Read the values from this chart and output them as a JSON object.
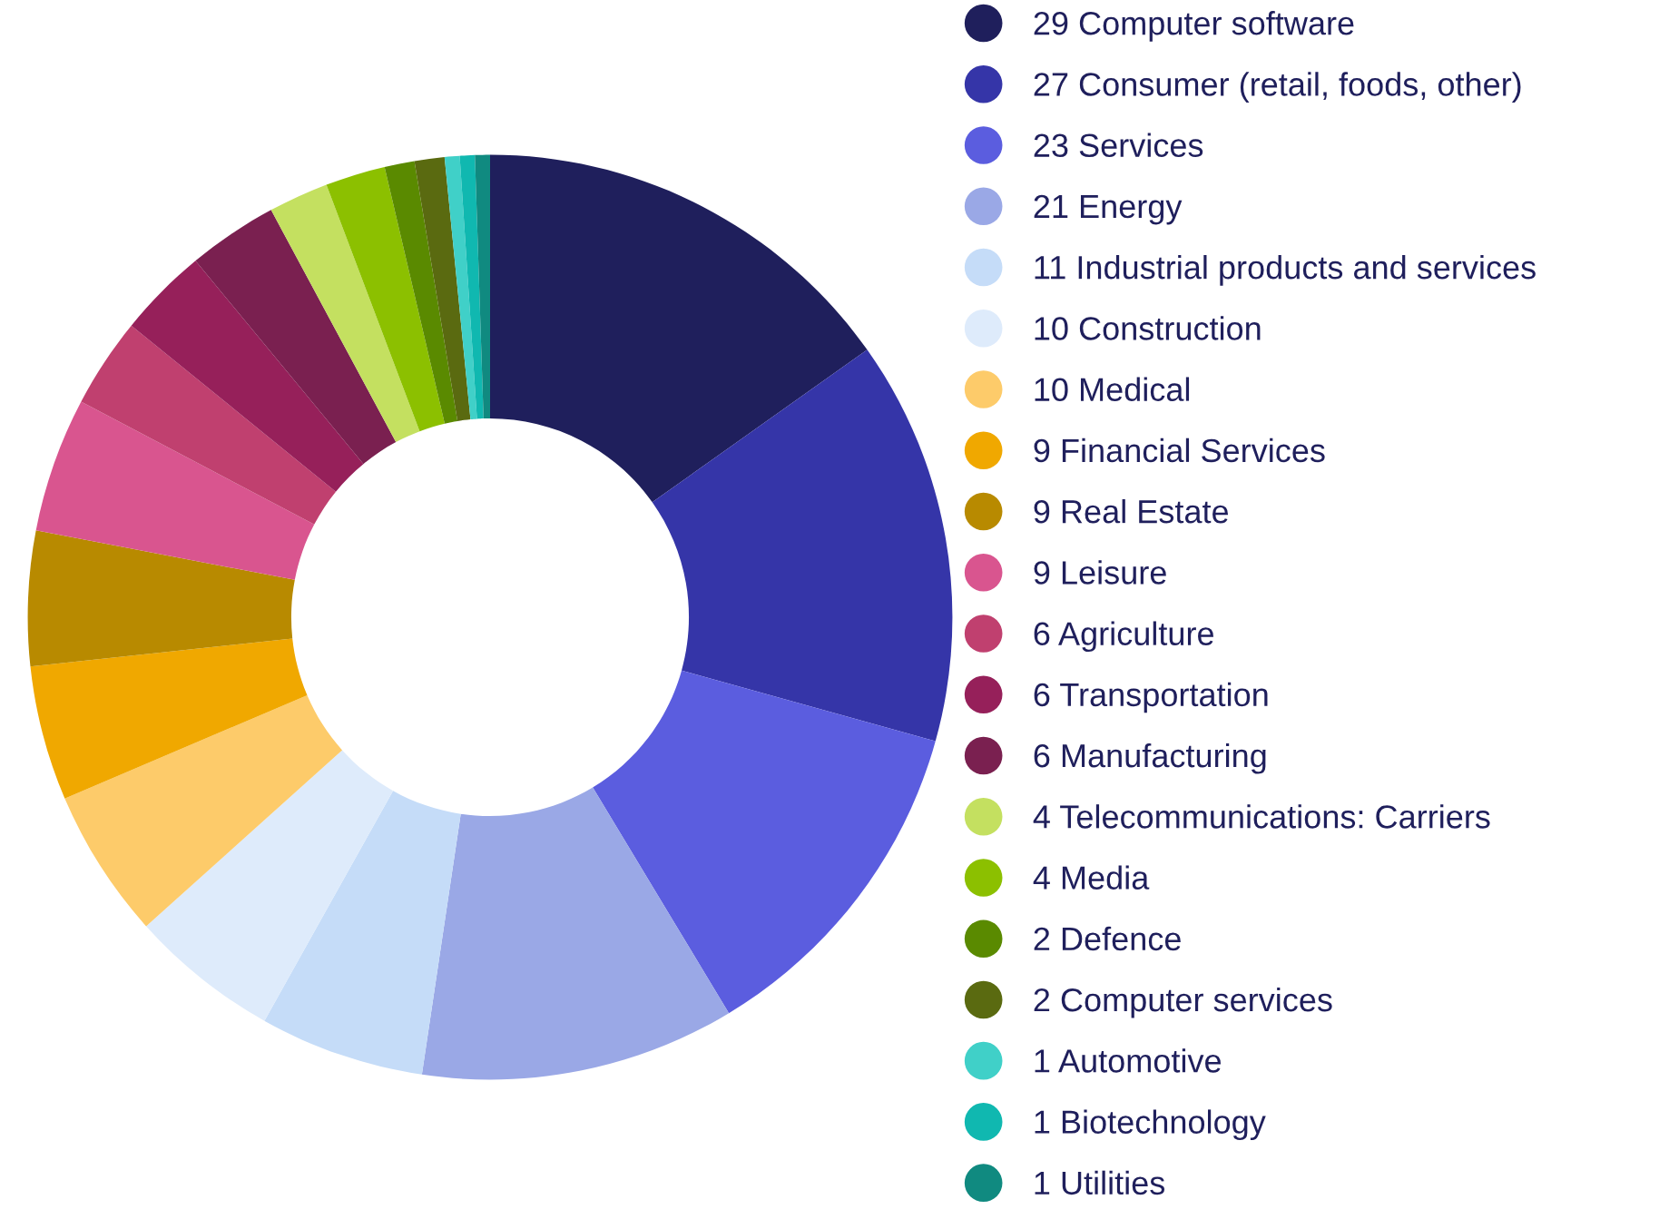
{
  "chart_data": {
    "type": "donut",
    "legend": "right",
    "categories": [
      "29 Computer software",
      "27 Consumer (retail, foods, other)",
      "23 Services",
      "21 Energy",
      "11 Industrial products and services",
      "10 Construction",
      "10 Medical",
      "9 Financial Services",
      "9 Real Estate",
      "9 Leisure",
      "6 Agriculture",
      "6 Transportation",
      "6 Manufacturing",
      "4 Telecommunications: Carriers",
      "4 Media",
      "2 Defence",
      "2 Computer services",
      "1 Automotive",
      "1 Biotechnology",
      "1 Utilities"
    ],
    "values": [
      29,
      27,
      23,
      21,
      11,
      10,
      10,
      9,
      9,
      9,
      6,
      6,
      6,
      4,
      4,
      2,
      2,
      1,
      1,
      1
    ],
    "colors": [
      "#1f1f5c",
      "#3535a8",
      "#5b5ddf",
      "#9aa8e6",
      "#c5dcf8",
      "#deebfb",
      "#fdcb6a",
      "#f0a800",
      "#b88a00",
      "#d9558f",
      "#c0406f",
      "#96205a",
      "#7a2050",
      "#c4e060",
      "#8cc000",
      "#5a8a00",
      "#5a6a10",
      "#40d0c8",
      "#10b8b0",
      "#108a80"
    ]
  }
}
